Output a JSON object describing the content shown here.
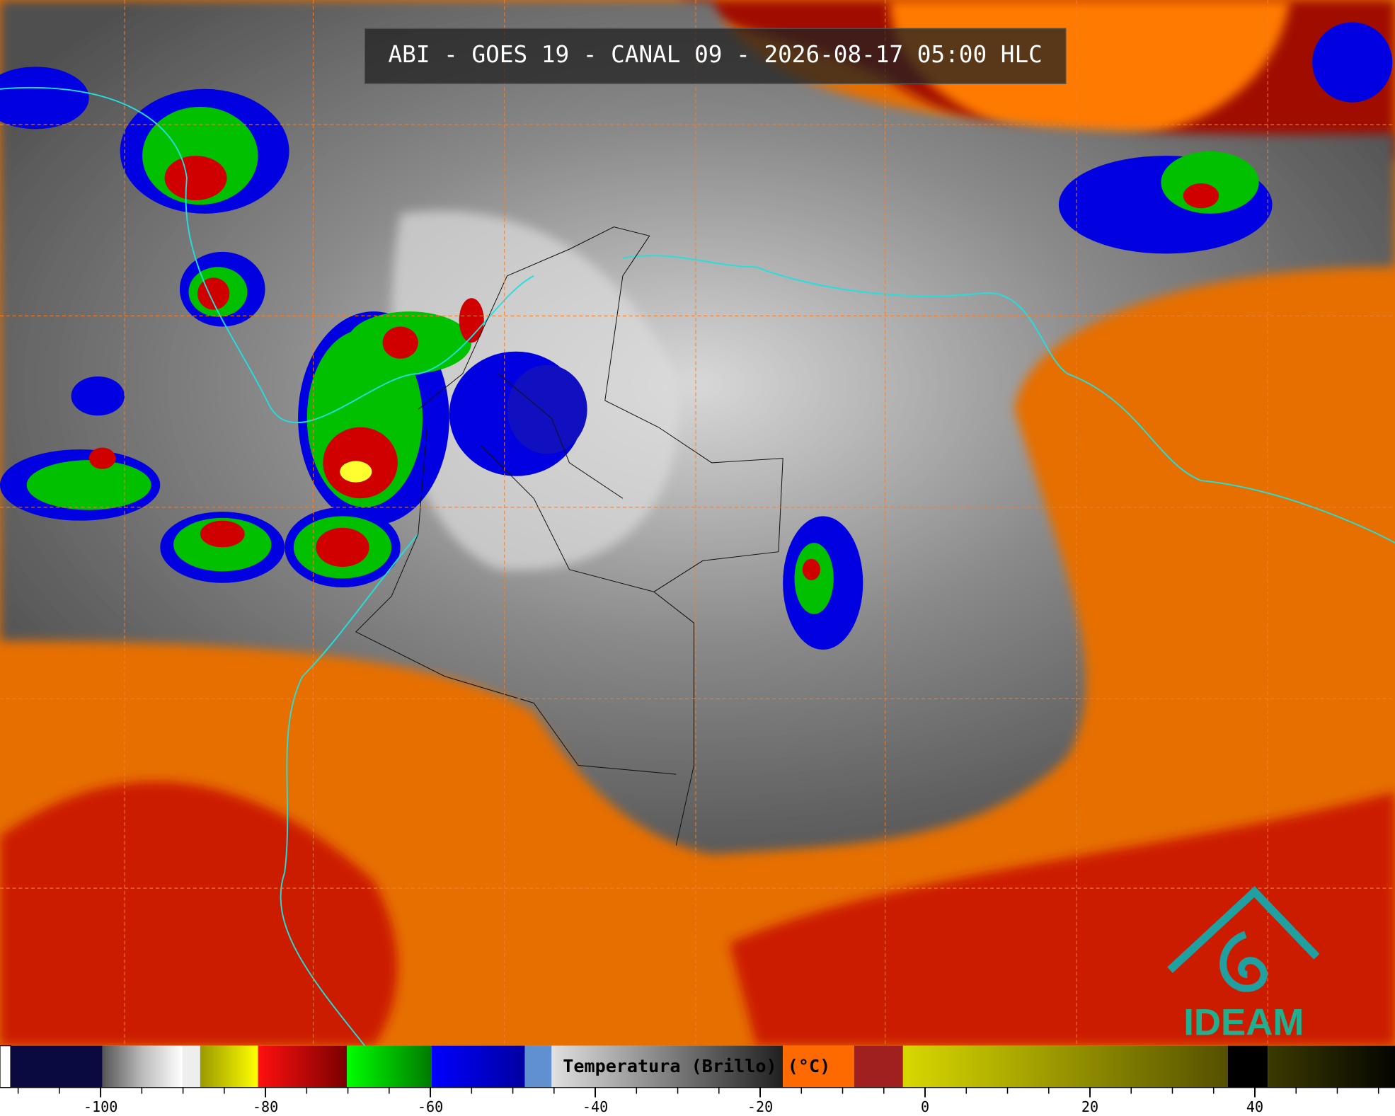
{
  "header": {
    "title": "ABI - GOES 19 - CANAL 09 - 2026-08-17 05:00 HLC"
  },
  "colorbar": {
    "label": "Temperatura (Brillo) (°C)",
    "range": [
      -112.2,
      57
    ],
    "ticks": [
      -100,
      -80,
      -60,
      -40,
      -20,
      0,
      20,
      40
    ],
    "minor_ticks": [
      -110,
      -105,
      -100,
      -95,
      -90,
      -85,
      -80,
      -75,
      -70,
      -65,
      -60,
      -55,
      -50,
      -45,
      -40,
      -35,
      -30,
      -25,
      -20,
      -15,
      -10,
      -5,
      0,
      5,
      10,
      15,
      20,
      25,
      30,
      35,
      40,
      45,
      50,
      55
    ]
  },
  "logo": {
    "text": "IDEAM"
  }
}
